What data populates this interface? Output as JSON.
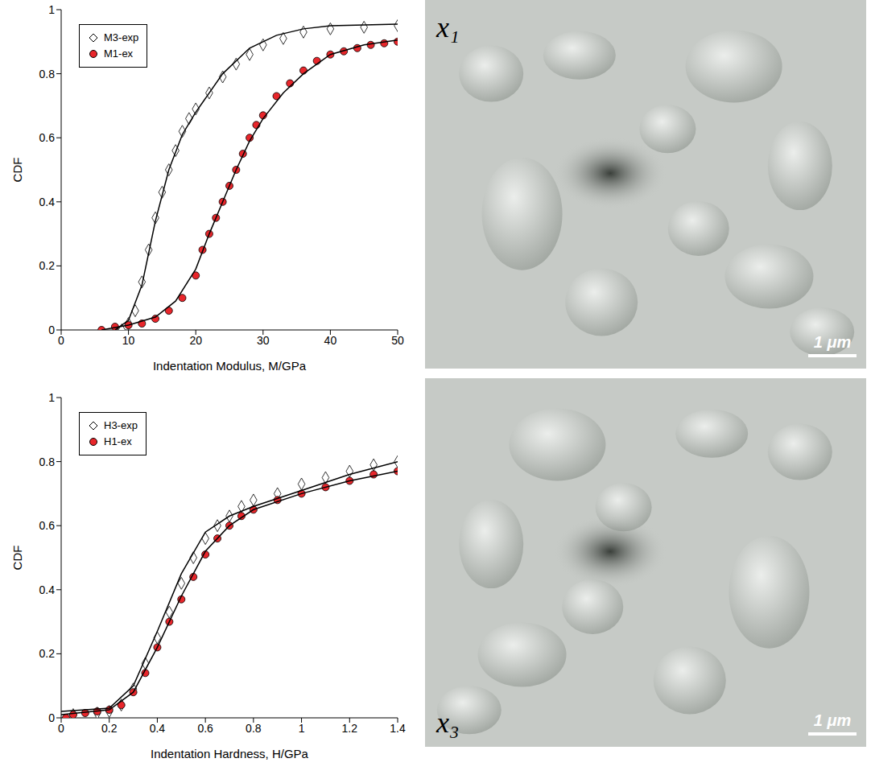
{
  "chart_data": [
    {
      "type": "scatter",
      "x_label": "Indentation Modulus, M/GPa",
      "y_label": "CDF",
      "xlim": [
        0,
        50
      ],
      "xticks": [
        0,
        10,
        20,
        30,
        40,
        50
      ],
      "ylim": [
        0,
        1
      ],
      "yticks": [
        0,
        0.2,
        0.4,
        0.6,
        0.8,
        1
      ],
      "grid": false,
      "legend": "upper left",
      "series": [
        {
          "name": "M3-exp",
          "color": "#ffffff",
          "marker": "diamond",
          "x": [
            9,
            10,
            11,
            12,
            13,
            14,
            15,
            16,
            17,
            18,
            19,
            20,
            22,
            24,
            26,
            28,
            30,
            33,
            36,
            40,
            45,
            50
          ],
          "values": [
            0,
            0.02,
            0.06,
            0.15,
            0.25,
            0.35,
            0.43,
            0.5,
            0.56,
            0.62,
            0.66,
            0.69,
            0.74,
            0.79,
            0.83,
            0.86,
            0.89,
            0.91,
            0.93,
            0.94,
            0.945,
            0.95
          ],
          "fit": {
            "x": [
              8,
              10,
              12,
              14,
              16,
              18,
              20,
              24,
              28,
              32,
              36,
              40,
              45,
              50
            ],
            "values": [
              0,
              0.03,
              0.14,
              0.34,
              0.5,
              0.61,
              0.68,
              0.8,
              0.88,
              0.92,
              0.94,
              0.95,
              0.952,
              0.955
            ]
          }
        },
        {
          "name": "M1-ex",
          "color": "#e8262b",
          "marker": "circle",
          "x": [
            6,
            8,
            10,
            12,
            14,
            16,
            18,
            20,
            21,
            22,
            23,
            24,
            25,
            26,
            27,
            28,
            29,
            30,
            32,
            34,
            36,
            38,
            40,
            42,
            44,
            46,
            48,
            50
          ],
          "values": [
            0,
            0.01,
            0.015,
            0.02,
            0.035,
            0.06,
            0.1,
            0.17,
            0.25,
            0.3,
            0.35,
            0.4,
            0.45,
            0.5,
            0.55,
            0.6,
            0.64,
            0.67,
            0.73,
            0.77,
            0.81,
            0.84,
            0.86,
            0.87,
            0.88,
            0.89,
            0.895,
            0.9
          ],
          "fit": {
            "x": [
              6,
              10,
              14,
              17,
              20,
              22,
              24,
              26,
              28,
              30,
              33,
              36,
              40,
              45,
              50
            ],
            "values": [
              0,
              0.015,
              0.04,
              0.09,
              0.19,
              0.3,
              0.4,
              0.5,
              0.59,
              0.66,
              0.74,
              0.8,
              0.86,
              0.89,
              0.905
            ]
          }
        }
      ]
    },
    {
      "type": "scatter",
      "x_label": "Indentation Hardness, H/GPa",
      "y_label": "CDF",
      "xlim": [
        0,
        1.4
      ],
      "xticks": [
        0,
        0.2,
        0.4,
        0.6,
        0.8,
        1,
        1.2,
        1.4
      ],
      "ylim": [
        0,
        1
      ],
      "yticks": [
        0,
        0.2,
        0.4,
        0.6,
        0.8,
        1
      ],
      "grid": false,
      "legend": "upper left",
      "series": [
        {
          "name": "H3-exp",
          "color": "#ffffff",
          "marker": "diamond",
          "x": [
            0.05,
            0.15,
            0.2,
            0.25,
            0.3,
            0.35,
            0.4,
            0.45,
            0.5,
            0.55,
            0.6,
            0.65,
            0.7,
            0.75,
            0.8,
            0.9,
            1,
            1.1,
            1.2,
            1.3,
            1.4
          ],
          "values": [
            0.01,
            0.015,
            0.02,
            0.04,
            0.09,
            0.17,
            0.25,
            0.33,
            0.42,
            0.5,
            0.56,
            0.6,
            0.63,
            0.66,
            0.68,
            0.7,
            0.73,
            0.75,
            0.77,
            0.79,
            0.8
          ],
          "fit": {
            "x": [
              0,
              0.2,
              0.3,
              0.4,
              0.5,
              0.6,
              0.7,
              0.8,
              1,
              1.2,
              1.4
            ],
            "values": [
              0.02,
              0.03,
              0.1,
              0.27,
              0.45,
              0.58,
              0.63,
              0.66,
              0.71,
              0.76,
              0.8
            ]
          }
        },
        {
          "name": "H1-ex",
          "color": "#e8262b",
          "marker": "circle",
          "x": [
            0.02,
            0.05,
            0.1,
            0.15,
            0.2,
            0.25,
            0.3,
            0.35,
            0.4,
            0.45,
            0.5,
            0.55,
            0.6,
            0.65,
            0.7,
            0.75,
            0.8,
            0.9,
            1,
            1.1,
            1.2,
            1.3,
            1.4
          ],
          "values": [
            0,
            0.01,
            0.015,
            0.02,
            0.025,
            0.04,
            0.08,
            0.14,
            0.22,
            0.3,
            0.37,
            0.44,
            0.51,
            0.56,
            0.6,
            0.63,
            0.65,
            0.68,
            0.7,
            0.72,
            0.74,
            0.76,
            0.77
          ],
          "fit": {
            "x": [
              0,
              0.2,
              0.3,
              0.4,
              0.5,
              0.6,
              0.7,
              0.8,
              1,
              1.2,
              1.4
            ],
            "values": [
              0.01,
              0.025,
              0.08,
              0.22,
              0.38,
              0.52,
              0.6,
              0.65,
              0.7,
              0.74,
              0.77
            ]
          }
        }
      ]
    }
  ],
  "images": [
    {
      "label": "x₁",
      "scale_bar": "1 μm"
    },
    {
      "label": "x₃",
      "scale_bar": "1 μm"
    }
  ]
}
